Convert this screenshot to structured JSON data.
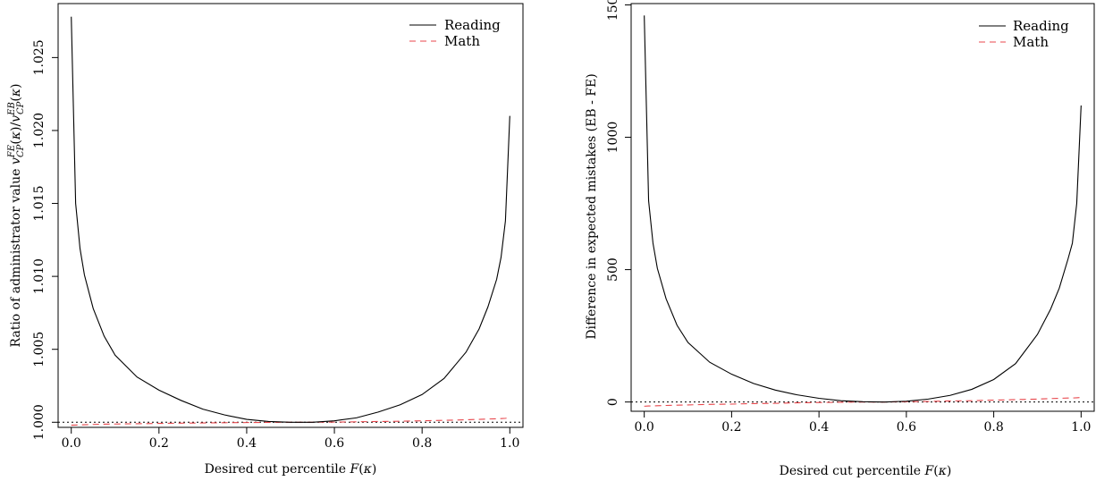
{
  "chart_data": [
    {
      "type": "line",
      "xlabel": "Desired cut percentile F(κ)",
      "ylabel": "Ratio of administrator value v_CP^FE(κ)/v_CP^EB(κ)",
      "xlim": [
        -0.03,
        1.03
      ],
      "ylim": [
        0.99965,
        1.0287
      ],
      "x_ticks": [
        "0.0",
        "0.2",
        "0.4",
        "0.6",
        "0.8",
        "1.0"
      ],
      "x_tick_values": [
        0.0,
        0.2,
        0.4,
        0.6,
        0.8,
        1.0
      ],
      "y_ticks": [
        "1.000",
        "1.005",
        "1.010",
        "1.015",
        "1.020",
        "1.025"
      ],
      "y_tick_values": [
        1.0,
        1.005,
        1.01,
        1.015,
        1.02,
        1.025
      ],
      "reference_line": 1.0,
      "legend": {
        "position": "top-right",
        "entries": [
          "Reading",
          "Math"
        ]
      },
      "grid": false,
      "x": [
        0.0,
        0.01,
        0.02,
        0.03,
        0.05,
        0.075,
        0.1,
        0.15,
        0.2,
        0.25,
        0.3,
        0.35,
        0.4,
        0.45,
        0.5,
        0.55,
        0.6,
        0.65,
        0.7,
        0.75,
        0.8,
        0.85,
        0.9,
        0.93,
        0.95,
        0.97,
        0.98,
        0.99,
        1.0
      ],
      "series": [
        {
          "name": "Reading",
          "color": "#000000",
          "style": "solid",
          "values": [
            1.0278,
            1.015,
            1.0119,
            1.0101,
            1.0078,
            1.0059,
            1.0046,
            1.0031,
            1.0022,
            1.0015,
            1.0009,
            1.0005,
            1.0002,
            1.00005,
            1.0,
            1.0,
            1.0001,
            1.0003,
            1.0007,
            1.0012,
            1.0019,
            1.003,
            1.0048,
            1.0064,
            1.0079,
            1.0098,
            1.0113,
            1.0138,
            1.021
          ]
        },
        {
          "name": "Math",
          "color": "#e8474c",
          "style": "dashed",
          "values": [
            0.9998,
            0.99981,
            0.99982,
            0.99983,
            0.99985,
            0.99987,
            0.99988,
            0.9999,
            0.99992,
            0.99994,
            0.99995,
            0.99997,
            0.99998,
            0.99999,
            1.0,
            1.0,
            1.00001,
            1.00003,
            1.00005,
            1.00007,
            1.0001,
            1.00013,
            1.00017,
            1.0002,
            1.00022,
            1.00024,
            1.00025,
            1.00027,
            1.0003
          ]
        }
      ]
    },
    {
      "type": "line",
      "xlabel": "Desired cut percentile F(κ)",
      "ylabel": "Difference in expected mistakes (EB - FE)",
      "xlim": [
        -0.03,
        1.03
      ],
      "ylim": [
        -35,
        1505
      ],
      "x_ticks": [
        "0.0",
        "0.2",
        "0.4",
        "0.6",
        "0.8",
        "1.0"
      ],
      "x_tick_values": [
        0.0,
        0.2,
        0.4,
        0.6,
        0.8,
        1.0
      ],
      "y_ticks": [
        "0",
        "500",
        "1000",
        "1500"
      ],
      "y_tick_values": [
        0,
        500,
        1000,
        1500
      ],
      "reference_line": 0,
      "legend": {
        "position": "top-right",
        "entries": [
          "Reading",
          "Math"
        ]
      },
      "grid": false,
      "x": [
        0.0,
        0.01,
        0.02,
        0.03,
        0.05,
        0.075,
        0.1,
        0.15,
        0.2,
        0.25,
        0.3,
        0.35,
        0.4,
        0.45,
        0.5,
        0.55,
        0.6,
        0.65,
        0.7,
        0.75,
        0.8,
        0.85,
        0.9,
        0.93,
        0.95,
        0.97,
        0.98,
        0.99,
        1.0
      ],
      "series": [
        {
          "name": "Reading",
          "color": "#000000",
          "style": "solid",
          "values": [
            1460,
            760,
            600,
            505,
            390,
            290,
            225,
            150,
            105,
            70,
            45,
            27,
            14,
            5,
            1,
            0,
            3,
            11,
            25,
            48,
            85,
            145,
            255,
            350,
            430,
            540,
            600,
            750,
            1120
          ]
        },
        {
          "name": "Math",
          "color": "#e8474c",
          "style": "dashed",
          "values": [
            -16,
            -15,
            -15,
            -14,
            -13,
            -12,
            -11,
            -9,
            -8,
            -6,
            -5,
            -3,
            -2,
            -1,
            0,
            0,
            1,
            2,
            4,
            5,
            7,
            9,
            11,
            13,
            14,
            15,
            15,
            16,
            17
          ]
        }
      ]
    }
  ]
}
